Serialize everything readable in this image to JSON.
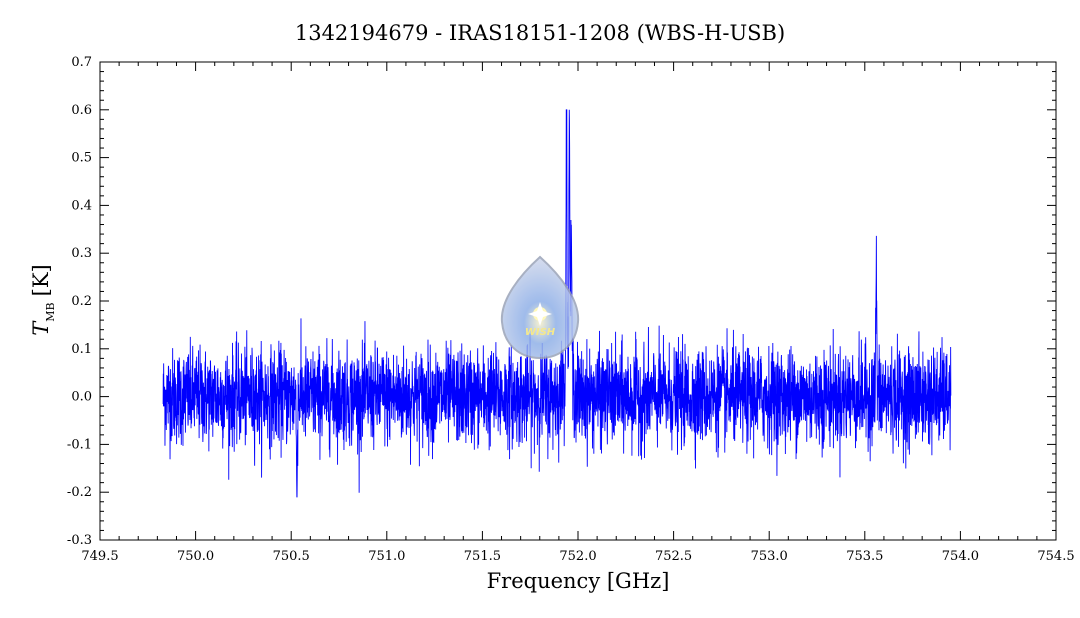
{
  "chart_data": {
    "type": "line",
    "title": "1342194679 - IRAS18151-1208 (WBS-H-USB)",
    "xlabel": "Frequency [GHz]",
    "ylabel_main": "T",
    "ylabel_sub": "MB",
    "ylabel_unit": "[K]",
    "xlim": [
      749.5,
      754.5
    ],
    "ylim": [
      -0.3,
      0.7
    ],
    "xticks": [
      "749.5",
      "750.0",
      "750.5",
      "751.0",
      "751.5",
      "752.0",
      "752.5",
      "753.0",
      "753.5",
      "754.0",
      "754.5"
    ],
    "yticks": [
      "-0.3",
      "-0.2",
      "-0.1",
      "0.0",
      "0.1",
      "0.2",
      "0.3",
      "0.4",
      "0.5",
      "0.6",
      "0.7"
    ],
    "grid": false,
    "line_color": "#0000ff",
    "series": [
      {
        "x_range": [
          749.83,
          753.95
        ],
        "noise_rms": 0.05,
        "baseline": 0.0,
        "features": [
          {
            "x": 751.94,
            "peak": 0.6
          },
          {
            "x": 751.955,
            "peak": 0.53
          },
          {
            "x": 751.965,
            "peak": 0.3
          },
          {
            "x": 753.56,
            "peak": 0.28
          },
          {
            "x": 750.53,
            "peak": -0.2
          }
        ]
      }
    ]
  },
  "watermark": {
    "text": "WISH"
  }
}
